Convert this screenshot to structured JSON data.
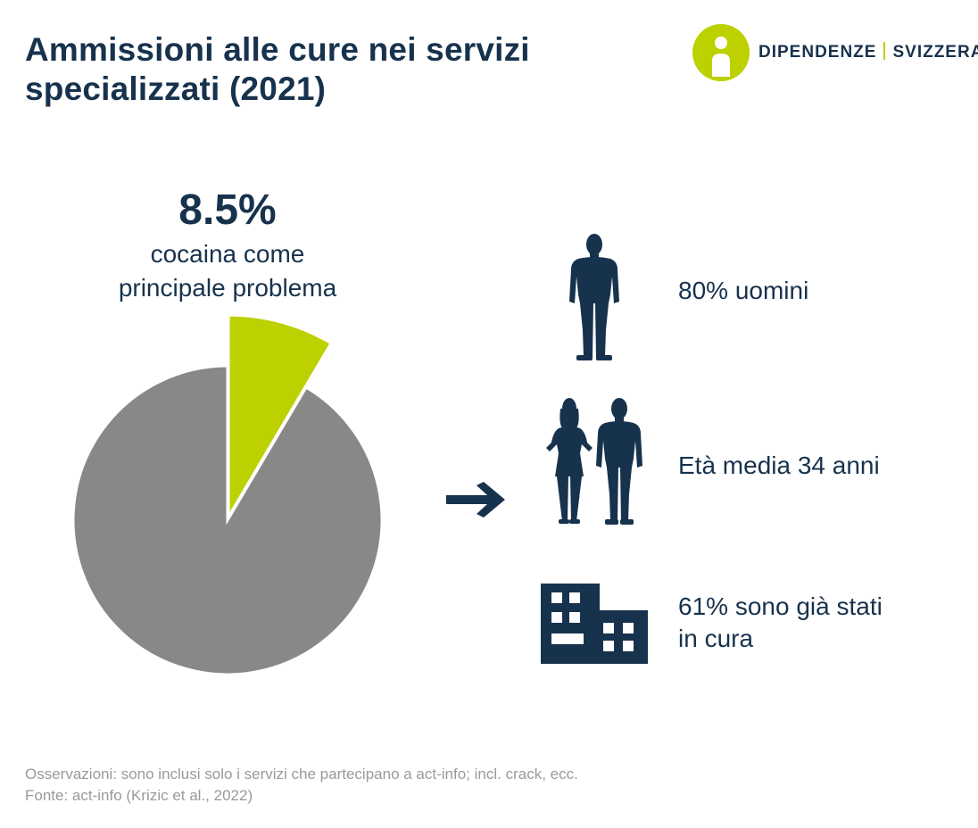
{
  "title_line1": "Ammissioni alle cure nei servizi",
  "title_line2": "specializzati (2021)",
  "logo": {
    "left": "DIPENDENZE",
    "right": "SVIZZERA"
  },
  "highlight": {
    "value": "8.5%",
    "caption_line1": "cocaina come",
    "caption_line2": "principale problema"
  },
  "colors": {
    "navy": "#17324d",
    "accent": "#bdd100",
    "gray": "#888887"
  },
  "stats": [
    {
      "icon": "man-icon",
      "text": "80% uomini"
    },
    {
      "icon": "couple-icon",
      "text": "Età media 34 anni"
    },
    {
      "icon": "building-icon",
      "text_line1": "61% sono già stati",
      "text_line2": "in cura"
    }
  ],
  "footnote": {
    "line1": "Osservazioni: sono inclusi solo i servizi che partecipano a act-info; incl. crack, ecc.",
    "line2": "Fonte: act-info (Krizic et al., 2022)"
  },
  "chart_data": {
    "type": "pie",
    "slices": [
      {
        "label": "cocaina come principale problema",
        "value": 8.5,
        "color": "#bdd100",
        "exploded": true
      },
      {
        "label": "",
        "value": 91.5,
        "color": "#888887",
        "exploded": false
      }
    ]
  }
}
